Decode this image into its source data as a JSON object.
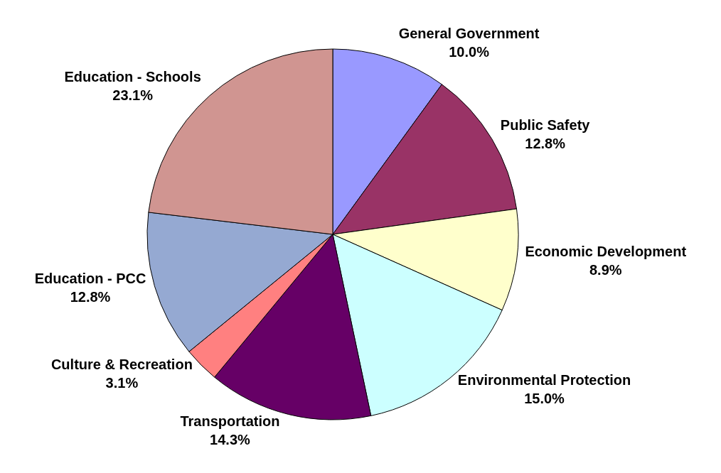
{
  "chart_data": {
    "type": "pie",
    "categories": [
      "General Government",
      "Public Safety",
      "Economic Development",
      "Environmental Protection",
      "Transportation",
      "Culture & Recreation",
      "Education - PCC",
      "Education - Schools"
    ],
    "values": [
      10.0,
      12.8,
      8.9,
      15.0,
      14.3,
      3.1,
      12.8,
      23.1
    ],
    "value_labels": [
      "10.0%",
      "12.8%",
      "8.9%",
      "15.0%",
      "14.3%",
      "3.1%",
      "12.8%",
      "23.1%"
    ],
    "colors": [
      "#9999ff",
      "#993366",
      "#ffffcc",
      "#ccffff",
      "#660066",
      "#ff8080",
      "#95a9d2",
      "#d09591"
    ],
    "legend": false
  }
}
